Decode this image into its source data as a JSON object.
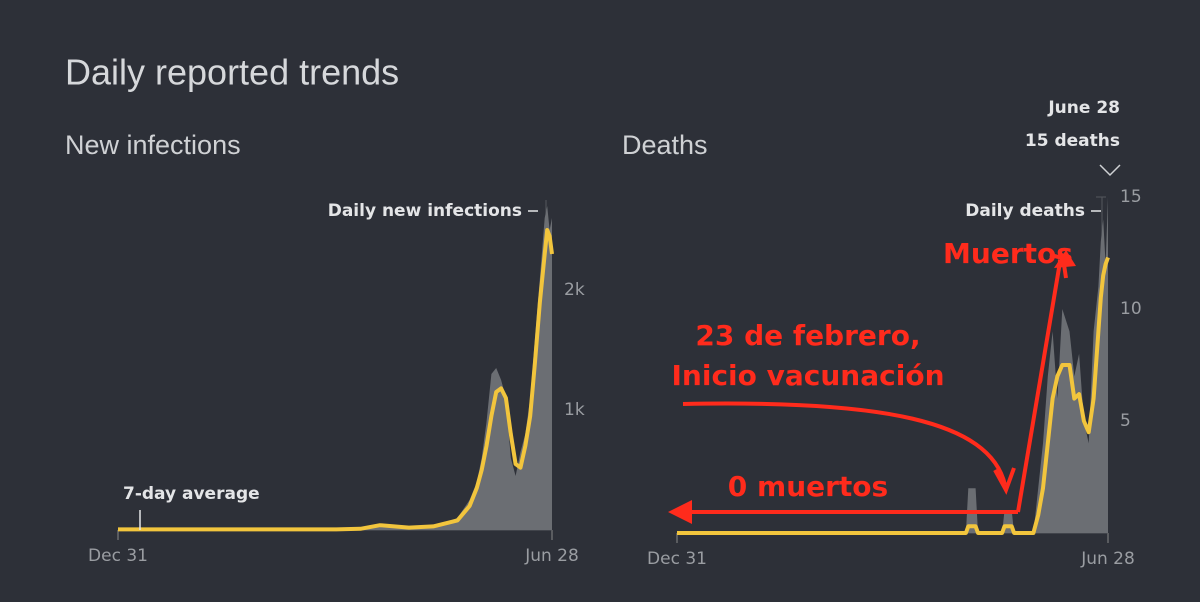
{
  "page_title": "Daily reported trends",
  "chart_data": [
    {
      "type": "area",
      "title": "New infections",
      "x": [
        0,
        10,
        20,
        30,
        40,
        50,
        60,
        70,
        80,
        90,
        100,
        108,
        120,
        130,
        140,
        145,
        148,
        150,
        152,
        154,
        156,
        158,
        160,
        162,
        164,
        166,
        168,
        170,
        172,
        174,
        176,
        177,
        178,
        179
      ],
      "series": [
        {
          "name": "Daily new infections",
          "style": "area",
          "color": "#6b6e73",
          "values": [
            5,
            5,
            5,
            5,
            10,
            5,
            5,
            5,
            5,
            5,
            10,
            50,
            20,
            30,
            100,
            250,
            400,
            600,
            900,
            1300,
            1350,
            1250,
            1100,
            600,
            450,
            650,
            800,
            1100,
            1600,
            2100,
            2600,
            2700,
            2500,
            2600
          ]
        },
        {
          "name": "7-day average",
          "style": "line",
          "color": "#f2c53d",
          "values": [
            5,
            5,
            5,
            5,
            5,
            5,
            5,
            5,
            5,
            5,
            10,
            40,
            20,
            30,
            80,
            200,
            350,
            500,
            700,
            950,
            1150,
            1180,
            1100,
            800,
            550,
            520,
            700,
            950,
            1400,
            1900,
            2300,
            2500,
            2450,
            2300
          ]
        }
      ],
      "xlim": [
        0,
        179
      ],
      "xticks": [
        {
          "value": 0,
          "label": "Dec 31"
        },
        {
          "value": 179,
          "label": "Jun 28"
        }
      ],
      "ylim": [
        0,
        2750
      ],
      "yticks": [
        {
          "value": 1000,
          "label": "1k"
        },
        {
          "value": 2000,
          "label": "2k"
        }
      ]
    },
    {
      "type": "area",
      "title": "Deaths",
      "x": [
        0,
        20,
        40,
        60,
        80,
        100,
        120,
        121,
        124,
        125,
        135,
        136,
        139,
        140,
        148,
        150,
        152,
        154,
        156,
        158,
        160,
        163,
        165,
        167,
        169,
        171,
        173,
        175,
        176,
        177,
        178,
        179
      ],
      "series": [
        {
          "name": "Daily deaths",
          "style": "area",
          "color": "#6b6e73",
          "values": [
            0,
            0,
            0,
            0,
            0,
            0,
            0,
            2,
            2,
            0,
            0,
            1,
            1,
            0,
            0,
            2,
            4,
            7,
            9,
            6,
            10,
            9,
            7,
            8,
            5,
            4,
            9,
            11,
            13,
            14,
            12,
            15
          ]
        },
        {
          "name": "7-day average",
          "style": "line",
          "color": "#f2c53d",
          "values": [
            0,
            0,
            0,
            0,
            0,
            0,
            0,
            0.3,
            0.3,
            0,
            0,
            0.3,
            0.3,
            0,
            0,
            0.8,
            2,
            4,
            6,
            7,
            7.5,
            7.5,
            6,
            6.2,
            5,
            4.5,
            6,
            9,
            10.5,
            11.5,
            12,
            12.3
          ]
        }
      ],
      "xlim": [
        0,
        179
      ],
      "xticks": [
        {
          "value": 0,
          "label": "Dec 31"
        },
        {
          "value": 179,
          "label": "Jun 28"
        }
      ],
      "ylim": [
        0,
        15
      ],
      "yticks": [
        5,
        10,
        15
      ],
      "annotations": [
        "June 28",
        "15 deaths",
        "Muertos",
        "23 de febrero,",
        "Inicio vacunación",
        "0 muertos"
      ]
    }
  ]
}
